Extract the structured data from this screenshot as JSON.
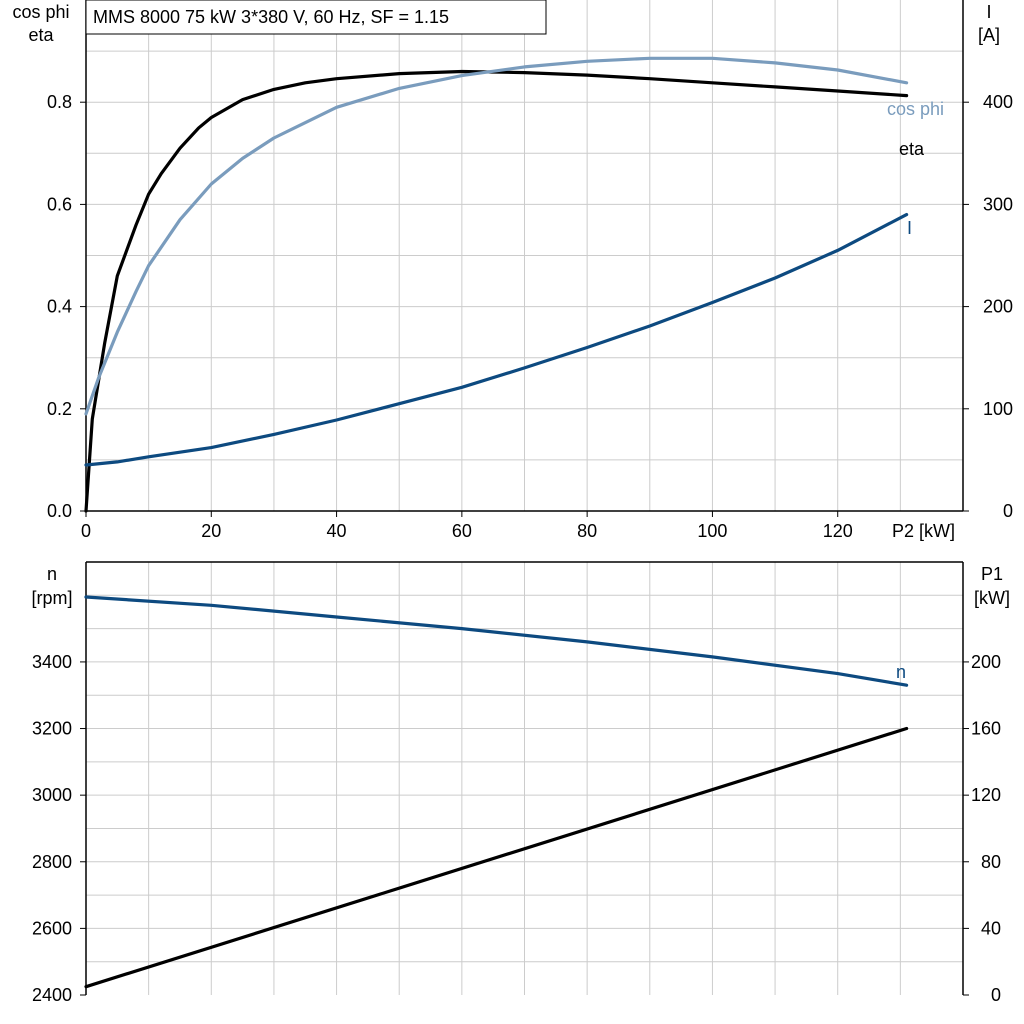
{
  "colors": {
    "eta": "#000000",
    "cos_phi": "#7a9cbd",
    "current": "#0d4a80",
    "speed": "#0d4a80",
    "p1": "#000000",
    "grid": "#cccccc",
    "axis": "#000000"
  },
  "chart_data": [
    {
      "type": "line",
      "title": "MMS 8000   75 kW   3*380 V, 60 Hz, SF = 1.15",
      "xlabel": "P2 [kW]",
      "ylabel_left": [
        "cos phi",
        "eta"
      ],
      "ylabel_right": [
        "I",
        "[A]"
      ],
      "xlim": [
        0,
        140
      ],
      "ylim_left": [
        0,
        1.0
      ],
      "ylim_right": [
        0,
        500
      ],
      "xticks": [
        "0",
        "20",
        "40",
        "60",
        "80",
        "100",
        "120"
      ],
      "yticks_left": [
        "0.0",
        "0.2",
        "0.4",
        "0.6",
        "0.8"
      ],
      "yticks_right": [
        "0",
        "100",
        "200",
        "300",
        "400"
      ],
      "grid": true,
      "series": [
        {
          "name": "eta",
          "axis": "left",
          "color": "#000000",
          "x": [
            0,
            1,
            3,
            5,
            8,
            10,
            12,
            15,
            18,
            20,
            25,
            30,
            35,
            40,
            50,
            60,
            70,
            80,
            90,
            100,
            110,
            120,
            131
          ],
          "y": [
            0.0,
            0.18,
            0.33,
            0.46,
            0.56,
            0.62,
            0.66,
            0.71,
            0.75,
            0.77,
            0.805,
            0.825,
            0.838,
            0.846,
            0.856,
            0.86,
            0.858,
            0.853,
            0.846,
            0.838,
            0.83,
            0.822,
            0.813
          ]
        },
        {
          "name": "cos phi",
          "axis": "left",
          "color": "#7a9cbd",
          "x": [
            0,
            2,
            5,
            8,
            10,
            15,
            20,
            25,
            30,
            40,
            50,
            60,
            70,
            80,
            90,
            100,
            110,
            120,
            131
          ],
          "y": [
            0.19,
            0.26,
            0.35,
            0.43,
            0.48,
            0.57,
            0.64,
            0.69,
            0.73,
            0.79,
            0.827,
            0.852,
            0.869,
            0.88,
            0.886,
            0.886,
            0.877,
            0.863,
            0.838
          ]
        },
        {
          "name": "I",
          "axis": "right",
          "color": "#0d4a80",
          "x": [
            0,
            5,
            10,
            20,
            30,
            40,
            50,
            60,
            70,
            80,
            90,
            100,
            110,
            120,
            131
          ],
          "y": [
            45,
            48,
            53,
            62,
            75,
            89,
            105,
            121,
            140,
            160,
            181,
            204,
            228,
            255,
            290
          ]
        }
      ]
    },
    {
      "type": "line",
      "xlim": [
        0,
        140
      ],
      "ylabel_left": [
        "n",
        "[rpm]"
      ],
      "ylabel_right": [
        "P1",
        "[kW]"
      ],
      "ylim_left": [
        2400,
        3700
      ],
      "ylim_right": [
        0,
        260
      ],
      "yticks_left": [
        "2400",
        "2600",
        "2800",
        "3000",
        "3200",
        "3400"
      ],
      "yticks_right": [
        "0",
        "40",
        "80",
        "120",
        "160",
        "200"
      ],
      "grid": true,
      "series": [
        {
          "name": "n",
          "axis": "left",
          "color": "#0d4a80",
          "x": [
            0,
            20,
            40,
            60,
            80,
            100,
            120,
            131
          ],
          "y": [
            3595,
            3570,
            3535,
            3500,
            3460,
            3415,
            3365,
            3330
          ]
        },
        {
          "axis": "right",
          "color": "#000000",
          "x": [
            0,
            131
          ],
          "y": [
            5,
            160
          ]
        }
      ]
    }
  ]
}
